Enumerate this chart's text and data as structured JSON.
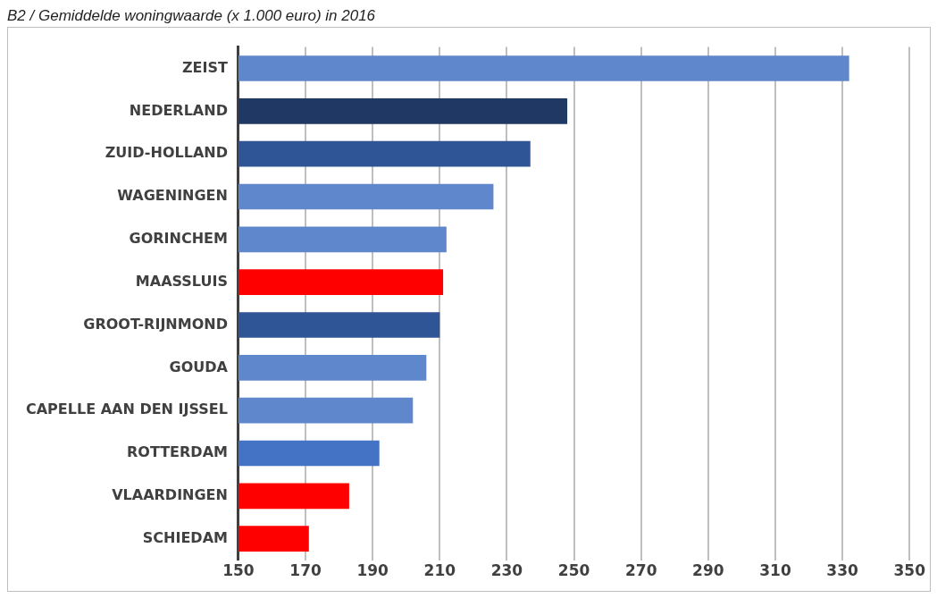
{
  "chart_data": {
    "type": "bar",
    "orientation": "horizontal",
    "title": "B2 / Gemiddelde woningwaarde (x 1.000 euro) in 2016",
    "categories": [
      "ZEIST",
      "NEDERLAND",
      "ZUID-HOLLAND",
      "WAGENINGEN",
      "GORINCHEM",
      "MAASSLUIS",
      "GROOT-RIJNMOND",
      "GOUDA",
      "CAPELLE AAN DEN IJSSEL",
      "ROTTERDAM",
      "VLAARDINGEN",
      "SCHIEDAM"
    ],
    "values": [
      332,
      248,
      237,
      226,
      212,
      211,
      210,
      206,
      202,
      192,
      183,
      171
    ],
    "colors": [
      "#5f87cb",
      "#203864",
      "#2f5597",
      "#5f87cb",
      "#5f87cb",
      "#ff0000",
      "#2f5597",
      "#5f87cb",
      "#5f87cb",
      "#4472c4",
      "#ff0000",
      "#ff0000"
    ],
    "xlim": [
      150,
      350
    ],
    "xticks": [
      150,
      170,
      190,
      210,
      230,
      250,
      270,
      290,
      310,
      330,
      350
    ],
    "grid": "x",
    "legend": false
  }
}
